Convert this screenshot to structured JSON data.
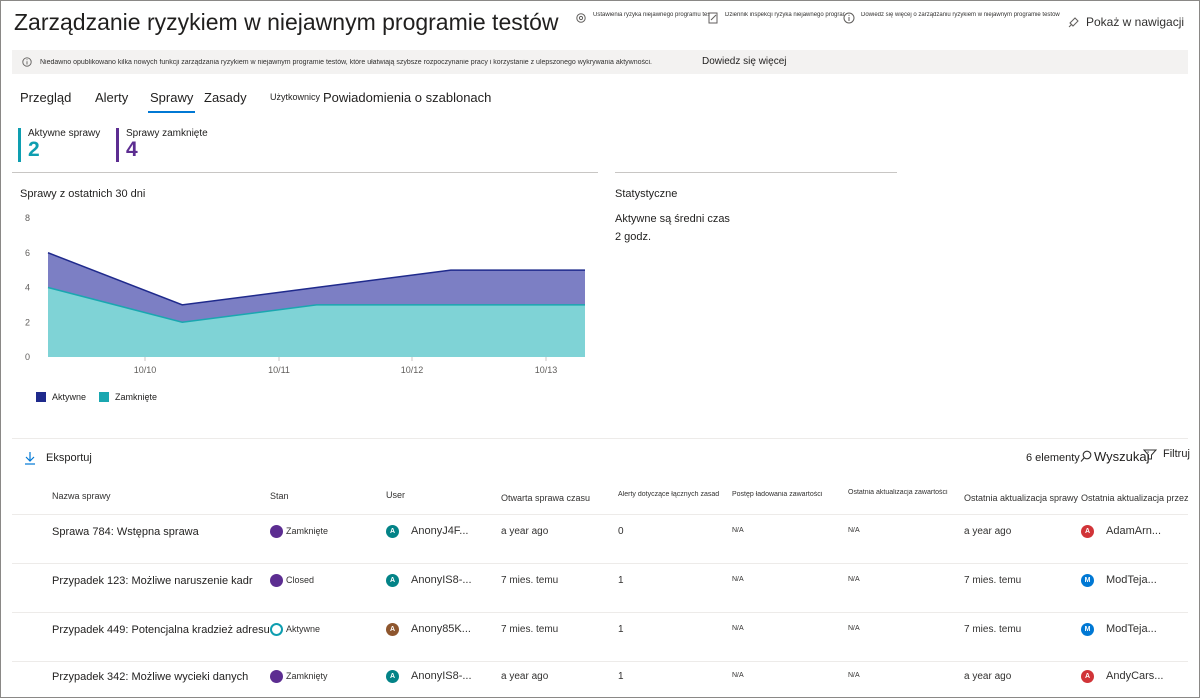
{
  "header": {
    "title": "Zarządzanie ryzykiem w niejawnym programie testów",
    "actions": [
      {
        "label": "Ustawienia ryzyka niejawnego programu testów",
        "icon": "gear-icon"
      },
      {
        "label": "Dziennik inspekcji ryzyka niejawnego programu testów",
        "icon": "edit-icon"
      },
      {
        "label": "Dowiedz się więcej o zarządzaniu ryzykiem w niejawnym programie testów",
        "icon": "info-icon"
      },
      {
        "label": "Pokaż w nawigacji",
        "icon": "pin-icon"
      }
    ]
  },
  "banner": {
    "text": "Niedawno opublikowano kilka nowych funkcji zarządzania ryzykiem w niejawnym programie testów, które ułatwiają szybsze rozpoczynanie pracy i korzystanie z ulepszonego wykrywania aktywności.",
    "link": "Dowiedz się więcej"
  },
  "tabs": [
    "Przegląd",
    "Alerty",
    "Sprawy",
    "Zasady",
    "Użytkownicy",
    "Powiadomienia o szablonach"
  ],
  "kpis": [
    {
      "label": "Aktywne sprawy",
      "value": "2",
      "color": "#0e9eb0"
    },
    {
      "label": "Sprawy zamknięte",
      "value": "4",
      "color": "#5c2d91"
    }
  ],
  "chart_title": "Sprawy z ostatnich 30 dni",
  "stats": {
    "title": "Statystyczne",
    "label": "Aktywne są średni czas",
    "value": "2 godz."
  },
  "chart_data": {
    "type": "area",
    "x": [
      "10/9",
      "10/10",
      "10/11",
      "10/12",
      "10/13"
    ],
    "x_ticks": [
      "10/10",
      "10/11",
      "10/12",
      "10/13"
    ],
    "ylim": [
      0,
      8
    ],
    "y_ticks": [
      "0",
      "2",
      "4",
      "6",
      "8"
    ],
    "points_x": [
      0,
      1,
      2,
      3,
      4
    ],
    "series": [
      {
        "name": "Aktywne",
        "color": "#1f2a8c",
        "fill": "#7c7fc4",
        "values": [
          6,
          3,
          4,
          5,
          5
        ]
      },
      {
        "name": "Zamknięte",
        "color": "#1aa7b0",
        "fill": "#7fd3d6",
        "values": [
          4,
          2,
          3,
          3,
          3
        ]
      }
    ],
    "legend": "bottom-left"
  },
  "toolbar": {
    "export": "Eksportuj",
    "count": "6 elementy",
    "search": "Wyszukaj",
    "filter": "Filtruj"
  },
  "columns": [
    "Nazwa sprawy",
    "Stan",
    "User",
    "Otwarta sprawa czasu",
    "Alerty dotyczące łącznych zasad",
    "Postęp ładowania zawartości",
    "Ostatnia aktualizacja zawartości",
    "Ostatnia aktualizacja sprawy",
    "Ostatnia aktualizacja przez"
  ],
  "rows": [
    {
      "name": "Sprawa 784: Wstępna sprawa",
      "status": "Zamknięte",
      "status_color": "#5c2d91",
      "user": "AnonyJ4F...",
      "user_initial": "A",
      "user_color": "#038387",
      "opened": "a year ago",
      "alerts": "0",
      "progress": "N/A",
      "content_update": "N/A",
      "case_update": "a year ago",
      "updated_by": "AdamArn...",
      "updated_by_initial": "A",
      "updated_by_color": "#d13438"
    },
    {
      "name": "Przypadek 123: Możliwe naruszenie kadr",
      "status": "Closed",
      "status_color": "#5c2d91",
      "user": "AnonyIS8-...",
      "user_initial": "A",
      "user_color": "#038387",
      "opened": "7 mies. temu",
      "alerts": "1",
      "progress": "N/A",
      "content_update": "N/A",
      "case_update": "7 mies. temu",
      "updated_by": "ModTeja...",
      "updated_by_initial": "M",
      "updated_by_color": "#0078d4"
    },
    {
      "name": "Przypadek 449: Potencjalna kradzież adresu IP",
      "status": "Aktywne",
      "status_color": "#0e9eb0",
      "user": "Anony85K...",
      "user_initial": "A",
      "user_color": "#8e562e",
      "opened": "7 mies. temu",
      "alerts": "1",
      "progress": "N/A",
      "content_update": "N/A",
      "case_update": "7 mies. temu",
      "updated_by": "ModTeja...",
      "updated_by_initial": "M",
      "updated_by_color": "#0078d4"
    },
    {
      "name": "Przypadek 342: Możliwe wycieki danych",
      "status": "Zamknięty",
      "status_color": "#5c2d91",
      "user": "AnonyIS8-...",
      "user_initial": "A",
      "user_color": "#038387",
      "opened": "a year ago",
      "alerts": "1",
      "progress": "N/A",
      "content_update": "N/A",
      "case_update": "a year ago",
      "updated_by": "AndyCars...",
      "updated_by_initial": "A",
      "updated_by_color": "#d13438"
    }
  ]
}
